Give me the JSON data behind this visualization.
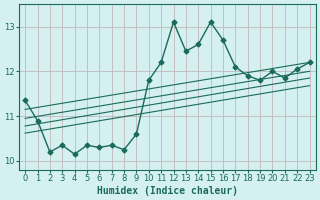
{
  "xlabel": "Humidex (Indice chaleur)",
  "bg_color": "#d4f0f0",
  "line_color": "#1a6b5a",
  "grid_color": "#c0b8b8",
  "x_values": [
    0,
    1,
    2,
    3,
    4,
    5,
    6,
    7,
    8,
    9,
    10,
    11,
    12,
    13,
    14,
    15,
    16,
    17,
    18,
    19,
    20,
    21,
    22,
    23
  ],
  "y_main": [
    11.35,
    10.9,
    10.2,
    10.35,
    10.15,
    10.35,
    10.3,
    10.35,
    10.25,
    10.6,
    11.8,
    12.2,
    13.1,
    12.45,
    12.6,
    13.1,
    12.7,
    12.1,
    11.9,
    11.8,
    12.0,
    11.85,
    12.05,
    12.2
  ],
  "trend_lines": [
    {
      "x0": 0,
      "y0": 11.15,
      "x1": 23,
      "y1": 12.2
    },
    {
      "x0": 0,
      "y0": 10.95,
      "x1": 23,
      "y1": 12.0
    },
    {
      "x0": 0,
      "y0": 10.78,
      "x1": 23,
      "y1": 11.85
    },
    {
      "x0": 0,
      "y0": 10.62,
      "x1": 23,
      "y1": 11.68
    }
  ],
  "ylim": [
    9.8,
    13.5
  ],
  "xlim": [
    -0.5,
    23.5
  ],
  "yticks": [
    10,
    11,
    12,
    13
  ],
  "xticks": [
    0,
    1,
    2,
    3,
    4,
    5,
    6,
    7,
    8,
    9,
    10,
    11,
    12,
    13,
    14,
    15,
    16,
    17,
    18,
    19,
    20,
    21,
    22,
    23
  ],
  "marker": "D",
  "markersize": 2.5,
  "linewidth": 1.0,
  "trend_linewidth": 0.8,
  "fontsize_label": 7,
  "fontsize_tick": 6
}
